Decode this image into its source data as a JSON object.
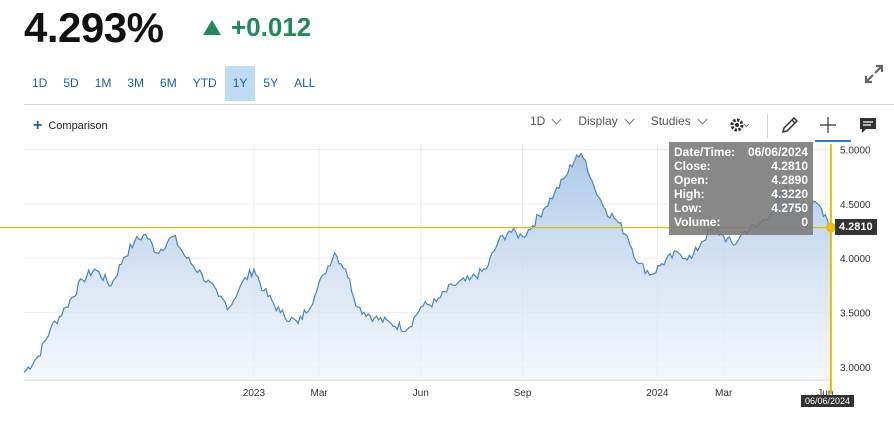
{
  "header": {
    "price": "4.293%",
    "change": "+0.012",
    "up_color": "#1e8a5a"
  },
  "ranges": [
    {
      "label": "1D",
      "active": false
    },
    {
      "label": "5D",
      "active": false
    },
    {
      "label": "1M",
      "active": false
    },
    {
      "label": "3M",
      "active": false
    },
    {
      "label": "6M",
      "active": false
    },
    {
      "label": "YTD",
      "active": false
    },
    {
      "label": "1Y",
      "active": true
    },
    {
      "label": "5Y",
      "active": false
    },
    {
      "label": "ALL",
      "active": false
    }
  ],
  "toolbar": {
    "comparison": "Comparison",
    "interval": "1D",
    "display": "Display",
    "studies": "Studies",
    "icons": [
      "gear-icon",
      "pencil-icon",
      "crosshair-icon",
      "comment-icon",
      "expand-icon"
    ]
  },
  "tooltip": {
    "rows": [
      {
        "label": "Date/Time:",
        "value": "06/06/2024"
      },
      {
        "label": "Close:",
        "value": "4.2810"
      },
      {
        "label": "Open:",
        "value": "4.2890"
      },
      {
        "label": "High:",
        "value": "4.3220"
      },
      {
        "label": "Low:",
        "value": "4.2750"
      },
      {
        "label": "Volume:",
        "value": "0"
      }
    ]
  },
  "crosshair": {
    "price_label": "4.2810",
    "date_label": "06/06/2024",
    "value": 4.281,
    "color": "#e8c000"
  },
  "chart_data": {
    "type": "area",
    "y_ticks": [
      "5.0000",
      "4.5000",
      "4.0000",
      "3.5000",
      "3.0000"
    ],
    "y_tick_values": [
      5.0,
      4.5,
      4.0,
      3.5,
      3.0
    ],
    "ylim": [
      2.88,
      5.05
    ],
    "x_ticks": [
      {
        "label": "2023",
        "date": "2023-01-01"
      },
      {
        "label": "Mar",
        "date": "2023-03-01"
      },
      {
        "label": "Jun",
        "date": "2023-06-01"
      },
      {
        "label": "Sep",
        "date": "2023-09-01"
      },
      {
        "label": "2024",
        "date": "2024-01-01"
      },
      {
        "label": "Mar",
        "date": "2024-03-01"
      },
      {
        "label": "Jun",
        "date": "2024-06-01"
      }
    ],
    "xlim": [
      "2022-06-07",
      "2024-06-07"
    ],
    "grid": true,
    "series": [
      {
        "line_color": "#4a86b8",
        "points": [
          [
            "2022-06-07",
            2.95
          ],
          [
            "2022-06-20",
            3.1
          ],
          [
            "2022-07-01",
            3.35
          ],
          [
            "2022-07-15",
            3.55
          ],
          [
            "2022-07-30",
            3.8
          ],
          [
            "2022-08-10",
            3.9
          ],
          [
            "2022-08-25",
            3.75
          ],
          [
            "2022-09-05",
            4.0
          ],
          [
            "2022-09-15",
            4.15
          ],
          [
            "2022-09-25",
            4.22
          ],
          [
            "2022-10-05",
            4.05
          ],
          [
            "2022-10-20",
            4.2
          ],
          [
            "2022-11-01",
            4.0
          ],
          [
            "2022-11-15",
            3.85
          ],
          [
            "2022-11-30",
            3.65
          ],
          [
            "2022-12-10",
            3.55
          ],
          [
            "2022-12-20",
            3.75
          ],
          [
            "2023-01-01",
            3.9
          ],
          [
            "2023-01-10",
            3.7
          ],
          [
            "2023-01-25",
            3.5
          ],
          [
            "2023-02-10",
            3.4
          ],
          [
            "2023-02-25",
            3.65
          ],
          [
            "2023-03-05",
            3.85
          ],
          [
            "2023-03-15",
            4.05
          ],
          [
            "2023-03-25",
            3.9
          ],
          [
            "2023-04-05",
            3.55
          ],
          [
            "2023-04-20",
            3.45
          ],
          [
            "2023-05-05",
            3.4
          ],
          [
            "2023-05-20",
            3.35
          ],
          [
            "2023-06-01",
            3.55
          ],
          [
            "2023-06-15",
            3.6
          ],
          [
            "2023-06-30",
            3.75
          ],
          [
            "2023-07-15",
            3.8
          ],
          [
            "2023-07-30",
            3.9
          ],
          [
            "2023-08-10",
            4.15
          ],
          [
            "2023-08-20",
            4.25
          ],
          [
            "2023-09-01",
            4.2
          ],
          [
            "2023-09-10",
            4.3
          ],
          [
            "2023-09-20",
            4.45
          ],
          [
            "2023-09-30",
            4.6
          ],
          [
            "2023-10-10",
            4.75
          ],
          [
            "2023-10-20",
            4.95
          ],
          [
            "2023-10-28",
            4.9
          ],
          [
            "2023-11-05",
            4.65
          ],
          [
            "2023-11-15",
            4.45
          ],
          [
            "2023-11-25",
            4.35
          ],
          [
            "2023-12-05",
            4.2
          ],
          [
            "2023-12-15",
            3.95
          ],
          [
            "2023-12-27",
            3.85
          ],
          [
            "2024-01-05",
            3.95
          ],
          [
            "2024-01-20",
            4.05
          ],
          [
            "2024-02-01",
            4.0
          ],
          [
            "2024-02-10",
            4.15
          ],
          [
            "2024-02-20",
            4.28
          ],
          [
            "2024-03-01",
            4.2
          ],
          [
            "2024-03-10",
            4.12
          ],
          [
            "2024-03-20",
            4.25
          ],
          [
            "2024-04-01",
            4.3
          ],
          [
            "2024-04-15",
            4.45
          ],
          [
            "2024-04-25",
            4.65
          ],
          [
            "2024-05-05",
            4.55
          ],
          [
            "2024-05-15",
            4.45
          ],
          [
            "2024-05-25",
            4.5
          ],
          [
            "2024-06-01",
            4.4
          ],
          [
            "2024-06-06",
            4.281
          ]
        ]
      }
    ]
  }
}
